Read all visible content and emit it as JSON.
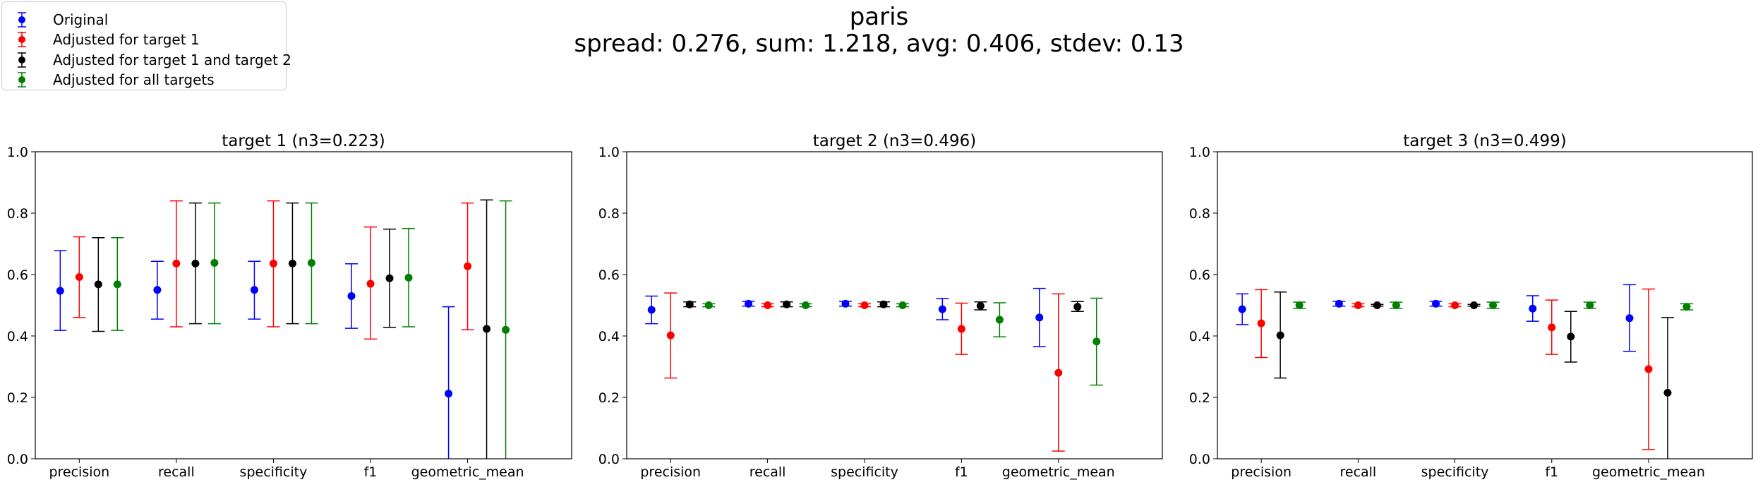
{
  "figure": {
    "title": "paris",
    "subtitle": "spread: 0.276, sum: 1.218, avg: 0.406, stdev: 0.13"
  },
  "legend": {
    "entries": [
      {
        "label": "Original",
        "color": "#0000ff"
      },
      {
        "label": "Adjusted for target 1",
        "color": "#ff0000"
      },
      {
        "label": "Adjusted for target 1 and target 2",
        "color": "#000000"
      },
      {
        "label": "Adjusted for all targets",
        "color": "#008000"
      }
    ]
  },
  "chart_data": [
    {
      "type": "scatter",
      "title": "target 1 (n3=0.223)",
      "categories": [
        "precision",
        "recall",
        "specificity",
        "f1",
        "geometric_mean"
      ],
      "ylim": [
        0.0,
        1.0
      ],
      "yticks": [
        "0.0",
        "0.2",
        "0.4",
        "0.6",
        "0.8",
        "1.0"
      ],
      "grid": false,
      "series": [
        {
          "name": "Original",
          "color": "#0000ff",
          "values": [
            0.547,
            0.55,
            0.55,
            0.53,
            0.212
          ],
          "err_low": [
            0.418,
            0.455,
            0.455,
            0.425,
            0.0
          ],
          "err_high": [
            0.678,
            0.643,
            0.643,
            0.635,
            0.495
          ]
        },
        {
          "name": "Adjusted for target 1",
          "color": "#ff0000",
          "values": [
            0.592,
            0.636,
            0.636,
            0.57,
            0.627
          ],
          "err_low": [
            0.46,
            0.43,
            0.43,
            0.39,
            0.42
          ],
          "err_high": [
            0.723,
            0.84,
            0.84,
            0.755,
            0.833
          ]
        },
        {
          "name": "Adjusted for target 1 and target 2",
          "color": "#000000",
          "values": [
            0.568,
            0.636,
            0.636,
            0.588,
            0.423
          ],
          "err_low": [
            0.415,
            0.44,
            0.44,
            0.428,
            0.0
          ],
          "err_high": [
            0.72,
            0.833,
            0.833,
            0.748,
            0.843
          ]
        },
        {
          "name": "Adjusted for all targets",
          "color": "#008000",
          "values": [
            0.568,
            0.638,
            0.638,
            0.59,
            0.42
          ],
          "err_low": [
            0.418,
            0.44,
            0.44,
            0.43,
            0.0
          ],
          "err_high": [
            0.72,
            0.833,
            0.833,
            0.75,
            0.84
          ]
        }
      ]
    },
    {
      "type": "scatter",
      "title": "target 2 (n3=0.496)",
      "categories": [
        "precision",
        "recall",
        "specificity",
        "f1",
        "geometric_mean"
      ],
      "ylim": [
        0.0,
        1.0
      ],
      "yticks": [
        "0.0",
        "0.2",
        "0.4",
        "0.6",
        "0.8",
        "1.0"
      ],
      "grid": false,
      "series": [
        {
          "name": "Original",
          "color": "#0000ff",
          "values": [
            0.485,
            0.505,
            0.505,
            0.487,
            0.46
          ],
          "err_low": [
            0.44,
            0.497,
            0.497,
            0.453,
            0.365
          ],
          "err_high": [
            0.53,
            0.513,
            0.513,
            0.522,
            0.555
          ]
        },
        {
          "name": "Adjusted for target 1",
          "color": "#ff0000",
          "values": [
            0.402,
            0.5,
            0.5,
            0.423,
            0.28
          ],
          "err_low": [
            0.263,
            0.495,
            0.495,
            0.34,
            0.025
          ],
          "err_high": [
            0.54,
            0.505,
            0.505,
            0.507,
            0.537
          ]
        },
        {
          "name": "Adjusted for target 1 and target 2",
          "color": "#000000",
          "values": [
            0.503,
            0.503,
            0.503,
            0.498,
            0.495
          ],
          "err_low": [
            0.495,
            0.495,
            0.495,
            0.485,
            0.48
          ],
          "err_high": [
            0.511,
            0.511,
            0.511,
            0.511,
            0.512
          ]
        },
        {
          "name": "Adjusted for all targets",
          "color": "#008000",
          "values": [
            0.5,
            0.5,
            0.5,
            0.453,
            0.382
          ],
          "err_low": [
            0.495,
            0.495,
            0.495,
            0.397,
            0.24
          ],
          "err_high": [
            0.505,
            0.505,
            0.505,
            0.508,
            0.523
          ]
        }
      ]
    },
    {
      "type": "scatter",
      "title": "target 3 (n3=0.499)",
      "categories": [
        "precision",
        "recall",
        "specificity",
        "f1",
        "geometric_mean"
      ],
      "ylim": [
        0.0,
        1.0
      ],
      "yticks": [
        "0.0",
        "0.2",
        "0.4",
        "0.6",
        "0.8",
        "1.0"
      ],
      "grid": false,
      "series": [
        {
          "name": "Original",
          "color": "#0000ff",
          "values": [
            0.487,
            0.505,
            0.505,
            0.489,
            0.458
          ],
          "err_low": [
            0.437,
            0.497,
            0.497,
            0.448,
            0.35
          ],
          "err_high": [
            0.537,
            0.513,
            0.513,
            0.531,
            0.567
          ]
        },
        {
          "name": "Adjusted for target 1",
          "color": "#ff0000",
          "values": [
            0.441,
            0.5,
            0.5,
            0.428,
            0.292
          ],
          "err_low": [
            0.33,
            0.495,
            0.495,
            0.34,
            0.03
          ],
          "err_high": [
            0.551,
            0.505,
            0.505,
            0.517,
            0.553
          ]
        },
        {
          "name": "Adjusted for target 1 and target 2",
          "color": "#000000",
          "values": [
            0.402,
            0.5,
            0.5,
            0.398,
            0.215
          ],
          "err_low": [
            0.263,
            0.497,
            0.497,
            0.315,
            0.0
          ],
          "err_high": [
            0.543,
            0.503,
            0.503,
            0.48,
            0.46
          ]
        },
        {
          "name": "Adjusted for all targets",
          "color": "#008000",
          "values": [
            0.5,
            0.5,
            0.5,
            0.5,
            0.495
          ],
          "err_low": [
            0.49,
            0.49,
            0.49,
            0.49,
            0.485
          ],
          "err_high": [
            0.51,
            0.51,
            0.51,
            0.51,
            0.505
          ]
        }
      ]
    }
  ]
}
